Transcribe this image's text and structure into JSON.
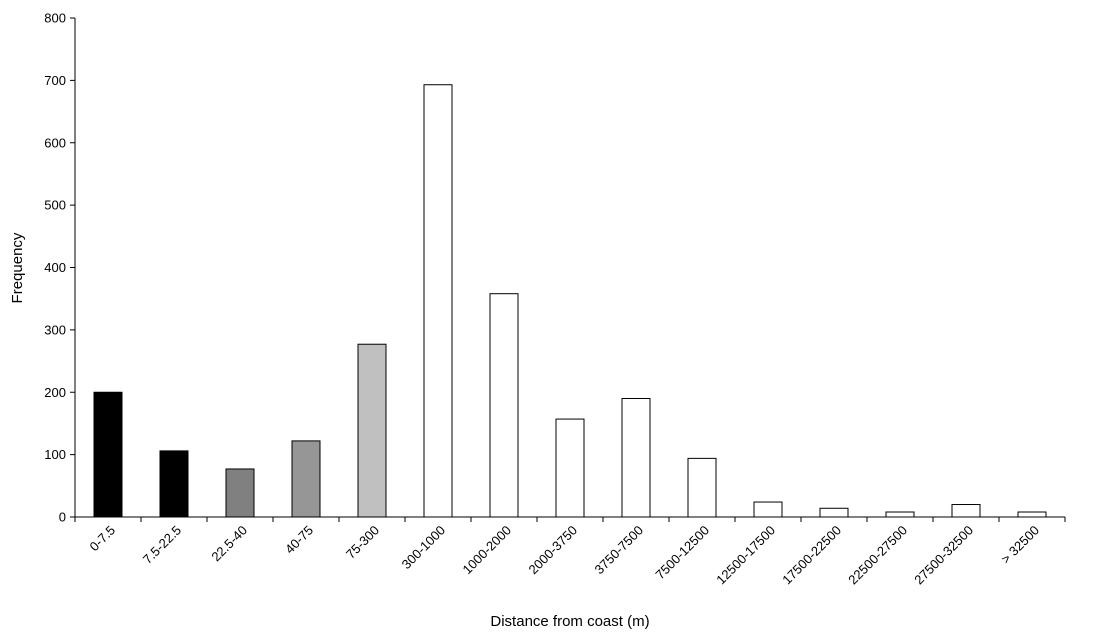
{
  "chart_data": {
    "type": "bar",
    "title": "",
    "xlabel": "Distance from coast (m)",
    "ylabel": "Frequency",
    "ylim": [
      0,
      800
    ],
    "yticks": [
      0,
      100,
      200,
      300,
      400,
      500,
      600,
      700,
      800
    ],
    "grid": false,
    "legend": "none",
    "categories": [
      "0-7.5",
      "7.5-22.5",
      "22.5-40",
      "40-75",
      "75-300",
      "300-1000",
      "1000-2000",
      "2000-3750",
      "3750-7500",
      "7500-12500",
      "12500-17500",
      "17500-22500",
      "22500-27500",
      "27500-32500",
      "> 32500"
    ],
    "values": [
      200,
      106,
      77,
      122,
      277,
      693,
      358,
      157,
      190,
      94,
      24,
      14,
      8,
      20,
      8
    ],
    "bar_colors": [
      "#000000",
      "#000000",
      "#808080",
      "#969696",
      "#c0c0c0",
      "#ffffff",
      "#ffffff",
      "#ffffff",
      "#ffffff",
      "#ffffff",
      "#ffffff",
      "#ffffff",
      "#ffffff",
      "#ffffff",
      "#ffffff"
    ]
  }
}
